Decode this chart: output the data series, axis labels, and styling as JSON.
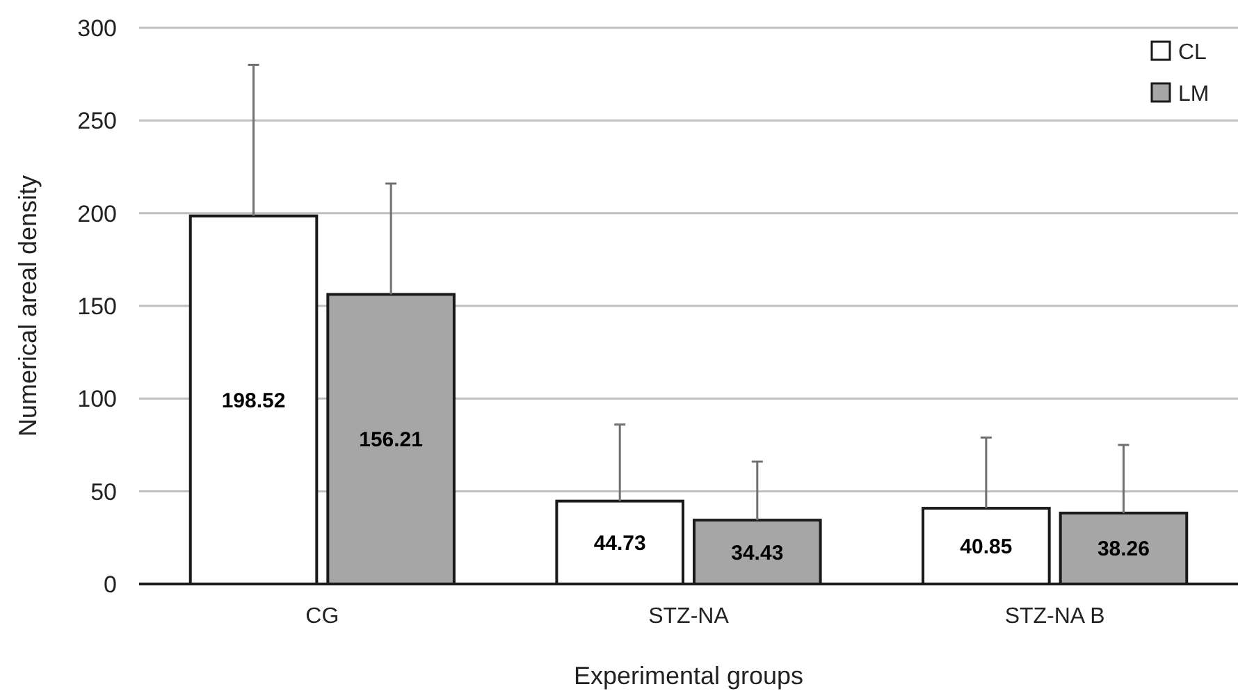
{
  "chart_data": {
    "type": "bar",
    "xlabel": "Experimental groups",
    "ylabel": "Numerical areal density",
    "categories": [
      "CG",
      "STZ-NA",
      "STZ-NA B"
    ],
    "series": [
      {
        "name": "CL",
        "color": "#ffffff",
        "values": [
          198.52,
          44.73,
          40.85
        ],
        "errors": [
          [
            198.52,
            280
          ],
          [
            44.73,
            86
          ],
          [
            40.85,
            79
          ]
        ]
      },
      {
        "name": "LM",
        "color": "#a6a6a6",
        "values": [
          156.21,
          34.43,
          38.26
        ],
        "errors": [
          [
            156.21,
            216
          ],
          [
            34.43,
            66
          ],
          [
            38.26,
            75
          ]
        ]
      }
    ],
    "ylim": [
      0,
      300
    ],
    "yticks": [
      0,
      50,
      100,
      150,
      200,
      250,
      300
    ],
    "grid": "y",
    "legend": "top right",
    "data_labels": true
  }
}
